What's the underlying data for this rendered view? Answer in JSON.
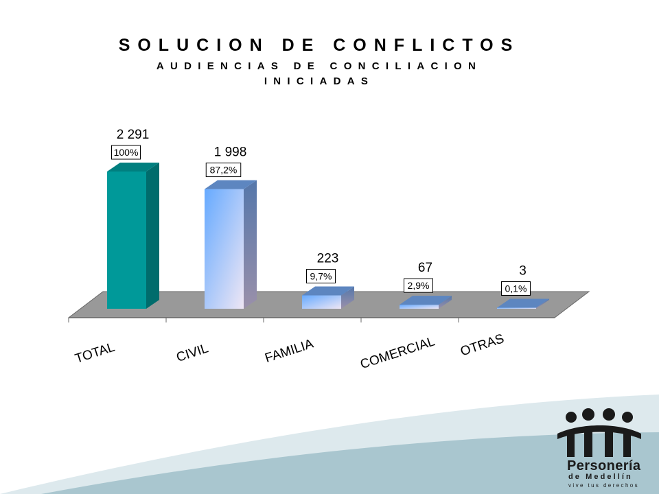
{
  "chart_data": {
    "type": "bar",
    "title": "SOLUCION DE CONFLICTOS",
    "subtitle": "AUDIENCIAS DE CONCILIACION",
    "subtitle2": "INICIADAS",
    "categories": [
      "TOTAL",
      "CIVIL",
      "FAMILIA",
      "COMERCIAL",
      "OTRAS"
    ],
    "values": [
      2291,
      1998,
      223,
      67,
      3
    ],
    "value_labels": [
      "2 291",
      "1 998",
      "223",
      "67",
      "3"
    ],
    "percent_labels": [
      "100%",
      "87,2%",
      "9,7%",
      "2,9%",
      "0,1%"
    ],
    "xlabel": "",
    "ylabel": "",
    "ylim": [
      0,
      2291
    ],
    "grid": false,
    "legend": "none",
    "bar_colors": {
      "total": "#009999",
      "gradient_start": "#66aaff",
      "gradient_end": "#eee6f4"
    },
    "floor_color": "#999999"
  },
  "logo": {
    "name": "Personería",
    "city": "de Medellín",
    "slogan": "vive tus derechos"
  }
}
